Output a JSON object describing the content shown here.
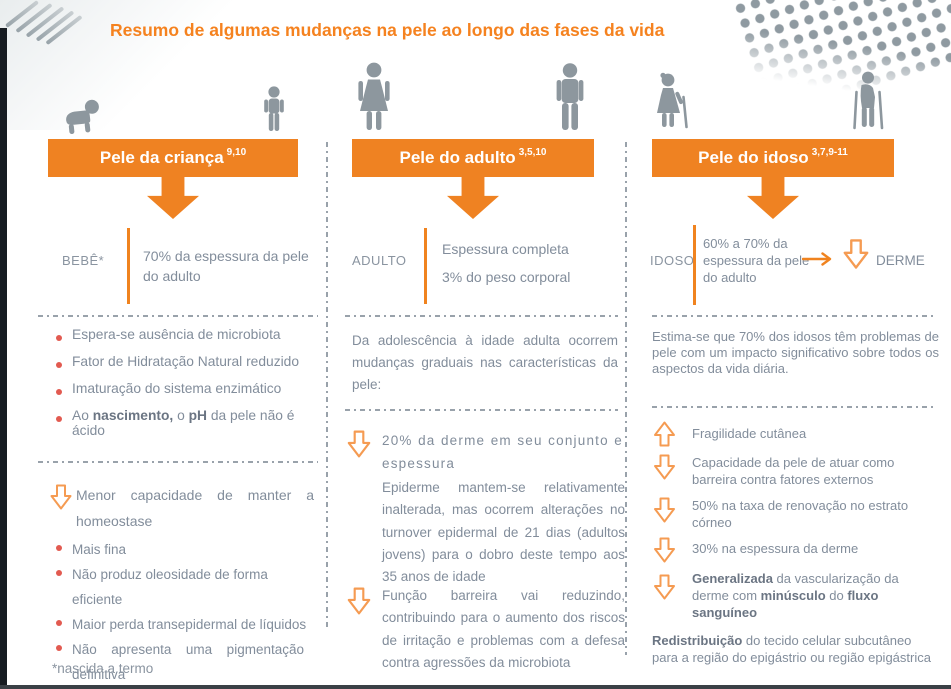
{
  "title": "Resumo de algumas mudanças na pele ao longo das fases da vida",
  "colors": {
    "accent_orange": "#EF8222",
    "title_orange": "#F5821F",
    "body_text": "#828D9B",
    "bold_text": "#6B7583",
    "bullet_red": "#E25A50",
    "icon_gray": "#8D979E",
    "separator_gray": "#99A2AB"
  },
  "columns": [
    {
      "header": "Pele da criança",
      "header_refs": "9,10",
      "icons": {
        "left": "crawling-baby-icon",
        "right": "child-icon"
      },
      "stage_label": "BEBÊ*",
      "measure": "70% da espessura da pele do adulto",
      "bullets_top": [
        {
          "text": "Espera-se ausência de microbiota"
        },
        {
          "text": "Fator de Hidratação Natural reduzido"
        },
        {
          "text": "Imaturação do sistema enzimático"
        },
        {
          "rich": [
            {
              "t": "Ao "
            },
            {
              "t": "nascimento,",
              "b": true
            },
            {
              "t": " o "
            },
            {
              "t": "pH",
              "b": true
            },
            {
              "t": " da pele não é ácido"
            }
          ]
        }
      ],
      "arrow_item": {
        "direction": "down",
        "text": "Menor capacidade de manter a homeostase"
      },
      "bullets_bottom": [
        {
          "text": "Mais fina"
        },
        {
          "text": "Não produz oleosidade de forma eficiente"
        },
        {
          "text": "Maior perda transepidermal de líquidos"
        },
        {
          "text": "Não apresenta uma pigmentação definitiva"
        }
      ],
      "footnote": "*nascida a termo"
    },
    {
      "header": "Pele do adulto",
      "header_refs": "3,5,10",
      "icons": {
        "left": "woman-icon",
        "right": "man-icon"
      },
      "stage_label": "ADULTO",
      "measure_lines": [
        "Espessura completa",
        "3% do peso corporal"
      ],
      "intro": "Da adolescência à idade adulta ocorrem mudanças graduais nas características da pele:",
      "arrow_items": [
        {
          "direction": "down",
          "text": "20% da derme em seu conjunto e espessura",
          "detail": "Epiderme mantem-se relativamente inalterada, mas ocorrem alterações no turnover epidermal de 21 dias (adultos jovens) para o dobro deste tempo aos 35 anos de idade"
        },
        {
          "direction": "down",
          "text": "Função barreira vai reduzindo, contribuindo para o aumento dos riscos de irritação e problemas com a defesa contra agressões da microbiota"
        }
      ]
    },
    {
      "header": "Pele do idoso",
      "header_refs": "3,7,9-11",
      "icons": {
        "left": "elderly-woman-icon",
        "right": "elderly-man-icon"
      },
      "stage_label": "IDOSO",
      "measure": "60% a 70% da espessura da pele do adulto",
      "measure_arrow_label": "DERME",
      "intro": "Estima-se que 70% dos idosos têm problemas de pele com um impacto significativo sobre todos os aspectos da vida diária.",
      "arrow_items": [
        {
          "direction": "up",
          "text": "Fragilidade cutânea"
        },
        {
          "direction": "down",
          "text": "Capacidade da pele de atuar como barreira contra fatores externos"
        },
        {
          "direction": "down",
          "text": "50% na taxa de renovação no estrato córneo"
        },
        {
          "direction": "down",
          "text": "30% na espessura da derme"
        },
        {
          "direction": "down",
          "rich": [
            {
              "t": "Generalizada",
              "b": true
            },
            {
              "t": " da vascularização da derme com "
            },
            {
              "t": "minúsculo",
              "b": true
            },
            {
              "t": " do "
            },
            {
              "t": "fluxo sanguíneo",
              "b": true
            }
          ]
        }
      ],
      "outro_rich": [
        {
          "t": "Redistribuição",
          "b": true
        },
        {
          "t": " do tecido celular subcutâneo para a região do epigástrio ou região epigástrica"
        }
      ]
    }
  ]
}
